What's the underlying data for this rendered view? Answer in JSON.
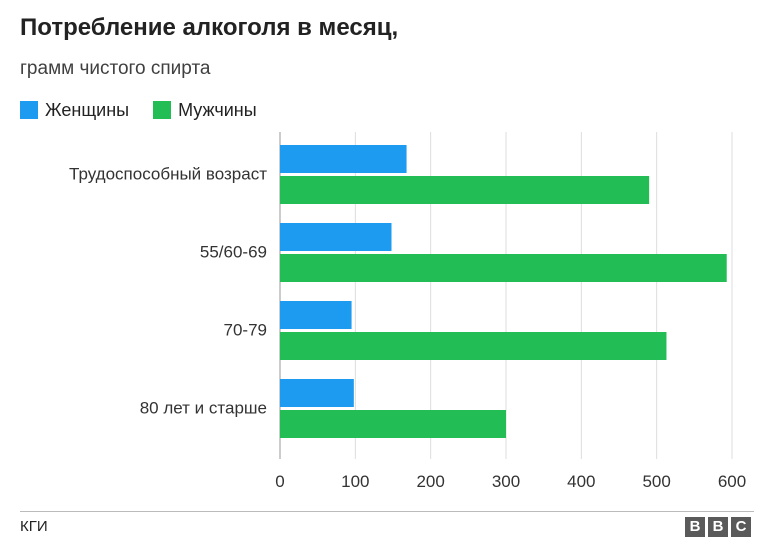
{
  "chart_data": {
    "type": "bar",
    "orientation": "horizontal",
    "title": "Потребление алкоголя в месяц,",
    "subtitle": "грамм чистого спирта",
    "categories": [
      "Трудоспособный возраст",
      "55/60-69",
      "70-79",
      "80 лет и старше"
    ],
    "series": [
      {
        "name": "Женщины",
        "color": "#1d9bf0",
        "values": [
          168,
          148,
          95,
          98
        ]
      },
      {
        "name": "Мужчины",
        "color": "#22bd55",
        "values": [
          490,
          593,
          513,
          300
        ]
      }
    ],
    "xlim": [
      0,
      600
    ],
    "xticks": [
      0,
      100,
      200,
      300,
      400,
      500,
      600
    ],
    "grid": true,
    "legend_position": "top-left"
  },
  "footer": {
    "source": "КГИ",
    "logo_letters": [
      "B",
      "B",
      "C"
    ]
  }
}
